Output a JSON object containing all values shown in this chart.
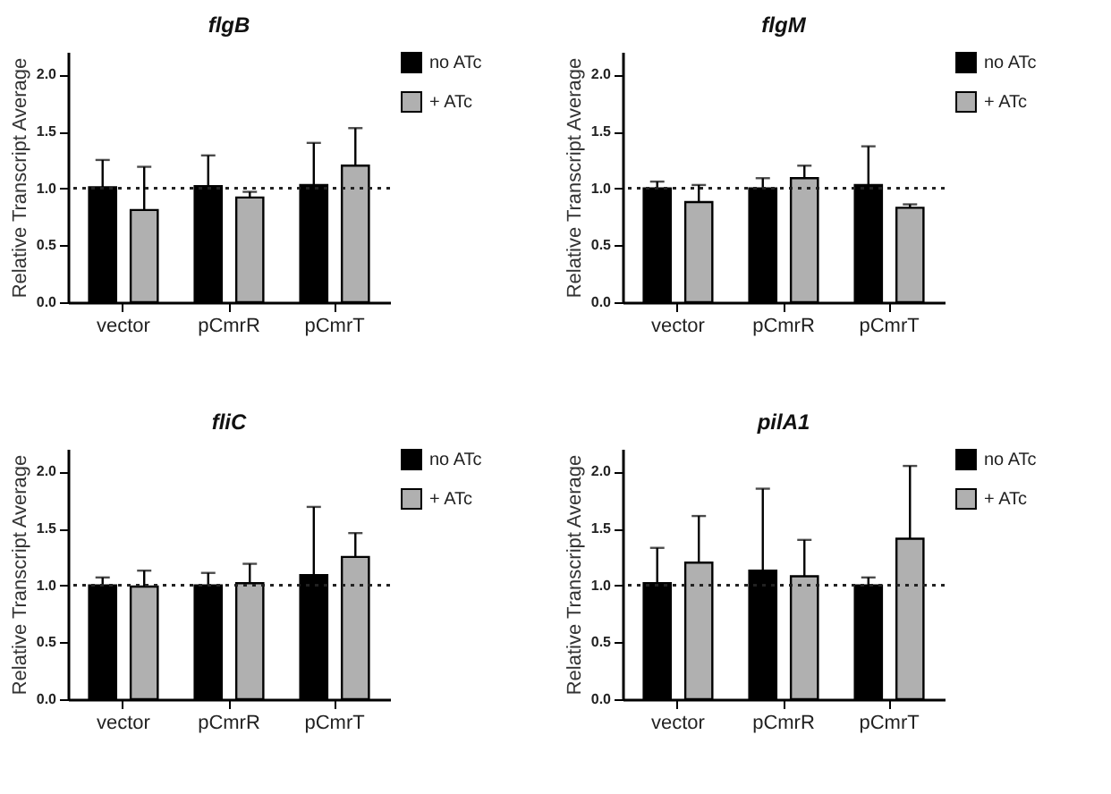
{
  "chart_data": [
    {
      "type": "bar",
      "title": "flgB",
      "ylabel": "Relative Transcript Average",
      "categories": [
        "vector",
        "pCmrR",
        "pCmrT"
      ],
      "series": [
        {
          "name": "no ATc",
          "color": "#000000",
          "values": [
            1.01,
            1.02,
            1.03
          ],
          "errors": [
            [
              1.01,
              1.25
            ],
            [
              1.02,
              1.29
            ],
            [
              1.03,
              1.4
            ]
          ]
        },
        {
          "name": "+ ATc",
          "color": "#b0b0b0",
          "values": [
            0.81,
            0.92,
            1.2
          ],
          "errors": [
            [
              0.81,
              1.19
            ],
            [
              0.92,
              0.97
            ],
            [
              1.2,
              1.53
            ]
          ]
        }
      ],
      "ylim": [
        0,
        2.2
      ],
      "yticks": [
        {
          "value": 0,
          "label": "0.0"
        },
        {
          "value": 0.5,
          "label": "0.5"
        },
        {
          "value": 1,
          "label": "1.0"
        },
        {
          "value": 1.5,
          "label": "1.5"
        },
        {
          "value": 2,
          "label": "2.0"
        }
      ],
      "ref_lines": [
        {
          "axis": "y",
          "value": 1,
          "label": null,
          "line_style": "dotted"
        }
      ],
      "legend": "top right",
      "grid": false
    },
    {
      "type": "bar",
      "title": "flgM",
      "ylabel": "Relative Transcript Average",
      "categories": [
        "vector",
        "pCmrR",
        "pCmrT"
      ],
      "series": [
        {
          "name": "no ATc",
          "color": "#000000",
          "values": [
            1.0,
            1.0,
            1.03
          ],
          "errors": [
            [
              1.0,
              1.06
            ],
            [
              1.0,
              1.09
            ],
            [
              1.03,
              1.37
            ]
          ]
        },
        {
          "name": "+ ATc",
          "color": "#b0b0b0",
          "values": [
            0.88,
            1.09,
            0.83
          ],
          "errors": [
            [
              0.88,
              1.03
            ],
            [
              1.09,
              1.2
            ],
            [
              0.83,
              0.86
            ]
          ]
        }
      ],
      "ylim": [
        0,
        2.2
      ],
      "yticks": [
        {
          "value": 0,
          "label": "0.0"
        },
        {
          "value": 0.5,
          "label": "0.5"
        },
        {
          "value": 1,
          "label": "1.0"
        },
        {
          "value": 1.5,
          "label": "1.5"
        },
        {
          "value": 2,
          "label": "2.0"
        }
      ],
      "ref_lines": [
        {
          "axis": "y",
          "value": 1,
          "label": null,
          "line_style": "dotted"
        }
      ],
      "legend": "top right",
      "grid": false
    },
    {
      "type": "bar",
      "title": "fliC",
      "ylabel": "Relative Transcript Average",
      "categories": [
        "vector",
        "pCmrR",
        "pCmrT"
      ],
      "series": [
        {
          "name": "no ATc",
          "color": "#000000",
          "values": [
            1.0,
            1.0,
            1.09
          ],
          "errors": [
            [
              1.0,
              1.07
            ],
            [
              1.0,
              1.11
            ],
            [
              1.09,
              1.69
            ]
          ]
        },
        {
          "name": "+ ATc",
          "color": "#b0b0b0",
          "values": [
            0.99,
            1.02,
            1.25
          ],
          "errors": [
            [
              0.99,
              1.13
            ],
            [
              1.02,
              1.19
            ],
            [
              1.25,
              1.46
            ]
          ]
        }
      ],
      "ylim": [
        0,
        2.2
      ],
      "yticks": [
        {
          "value": 0,
          "label": "0.0"
        },
        {
          "value": 0.5,
          "label": "0.5"
        },
        {
          "value": 1,
          "label": "1.0"
        },
        {
          "value": 1.5,
          "label": "1.5"
        },
        {
          "value": 2,
          "label": "2.0"
        }
      ],
      "ref_lines": [
        {
          "axis": "y",
          "value": 1,
          "label": null,
          "line_style": "dotted"
        }
      ],
      "legend": "top right",
      "grid": false
    },
    {
      "type": "bar",
      "title": "pilA1",
      "ylabel": "Relative Transcript Average",
      "categories": [
        "vector",
        "pCmrR",
        "pCmrT"
      ],
      "series": [
        {
          "name": "no ATc",
          "color": "#000000",
          "values": [
            1.02,
            1.13,
            1.0
          ],
          "errors": [
            [
              1.02,
              1.33
            ],
            [
              1.13,
              1.85
            ],
            [
              1.0,
              1.07
            ]
          ]
        },
        {
          "name": "+ ATc",
          "color": "#b0b0b0",
          "values": [
            1.2,
            1.08,
            1.41
          ],
          "errors": [
            [
              1.2,
              1.61
            ],
            [
              1.08,
              1.4
            ],
            [
              1.41,
              2.05
            ]
          ]
        }
      ],
      "ylim": [
        0,
        2.2
      ],
      "yticks": [
        {
          "value": 0,
          "label": "0.0"
        },
        {
          "value": 0.5,
          "label": "0.5"
        },
        {
          "value": 1,
          "label": "1.0"
        },
        {
          "value": 1.5,
          "label": "1.5"
        },
        {
          "value": 2,
          "label": "2.0"
        }
      ],
      "ref_lines": [
        {
          "axis": "y",
          "value": 1,
          "label": null,
          "line_style": "dotted"
        }
      ],
      "legend": "top right",
      "grid": false
    }
  ]
}
